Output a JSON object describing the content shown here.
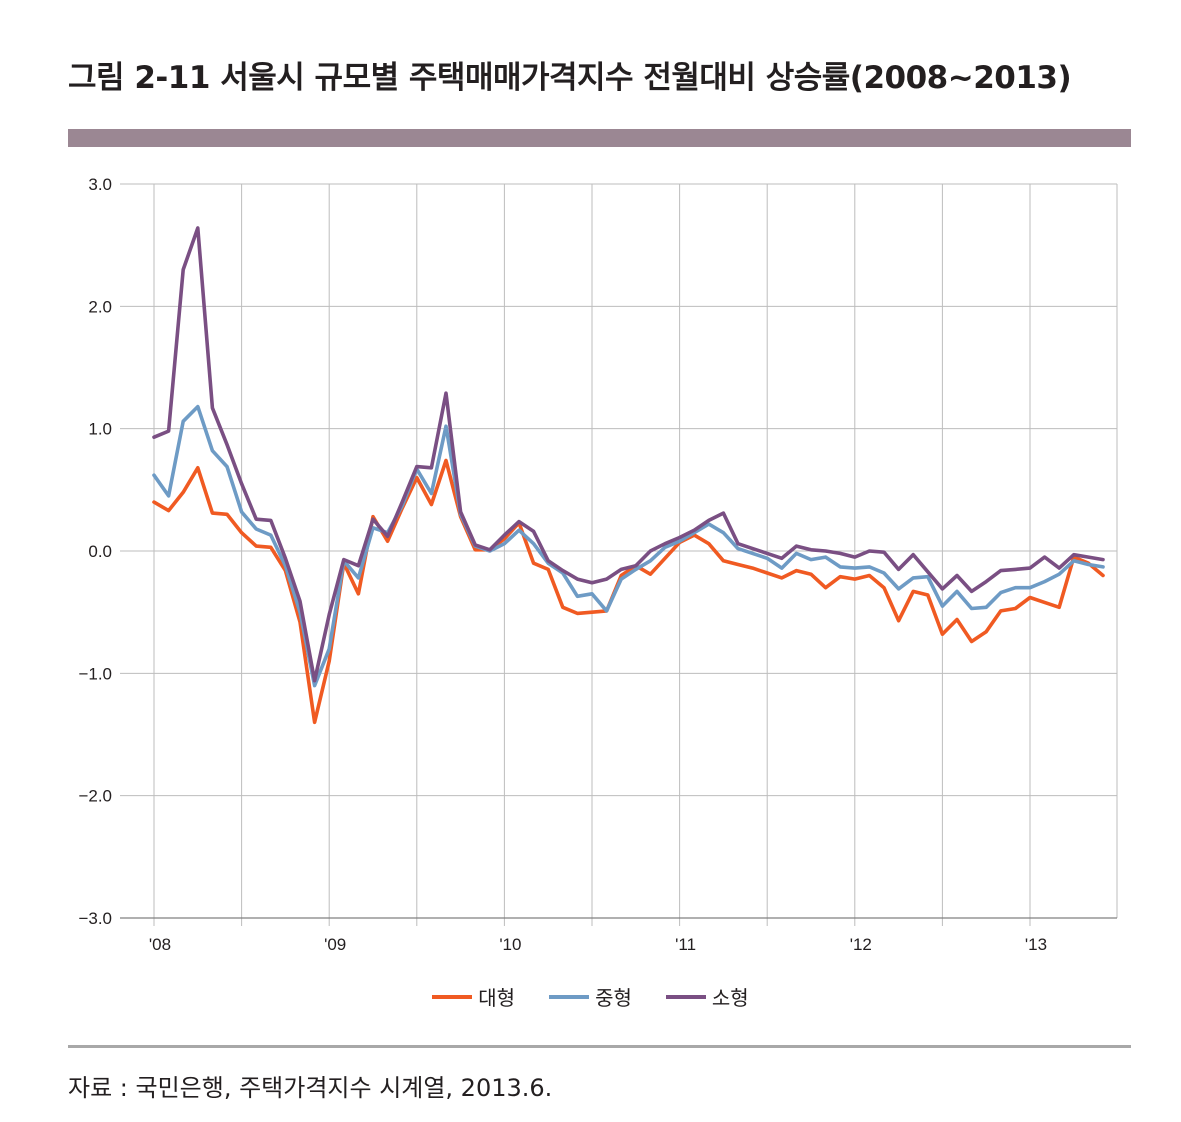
{
  "title": "그림 2-11 서울시 규모별 주택매매가격지수 전월대비 상승률(2008~2013)",
  "source": "자료 : 국민은행, 주택가격지수 시계열, 2013.6.",
  "colors": {
    "title_bar": "#9b8793",
    "grid": "#bdbdbd",
    "axis": "#808080"
  },
  "chart_data": {
    "type": "line",
    "title": "",
    "xlabel": "",
    "ylabel": "",
    "ylim": [
      -3.0,
      3.0
    ],
    "y_ticks": [
      "3.0",
      "2.0",
      "1.0",
      "0.0",
      "-1.0",
      "-2.0",
      "-3.0"
    ],
    "x_tick_labels": [
      "'08",
      "'09",
      "'10",
      "'11",
      "'12",
      "'13"
    ],
    "x_start": "2008-01",
    "x_end": "2013-06",
    "grid": true,
    "legend_position": "bottom",
    "series": [
      {
        "name": "대형",
        "color": "#f05a22",
        "values": [
          0.4,
          0.33,
          0.48,
          0.68,
          0.31,
          0.3,
          0.15,
          0.04,
          0.03,
          -0.16,
          -0.58,
          -1.4,
          -0.9,
          -0.1,
          -0.35,
          0.28,
          0.08,
          0.35,
          0.6,
          0.38,
          0.74,
          0.28,
          0.01,
          0.01,
          0.1,
          0.23,
          -0.1,
          -0.15,
          -0.46,
          -0.51,
          -0.5,
          -0.49,
          -0.2,
          -0.12,
          -0.19,
          -0.06,
          0.07,
          0.13,
          0.06,
          -0.08,
          -0.11,
          -0.14,
          -0.18,
          -0.22,
          -0.16,
          -0.19,
          -0.3,
          -0.21,
          -0.23,
          -0.2,
          -0.3,
          -0.57,
          -0.33,
          -0.36,
          -0.68,
          -0.56,
          -0.74,
          -0.66,
          -0.49,
          -0.47,
          -0.38,
          -0.42,
          -0.46,
          -0.05,
          -0.1,
          -0.2
        ]
      },
      {
        "name": "중형",
        "color": "#6e9bc5",
        "values": [
          0.62,
          0.45,
          1.06,
          1.18,
          0.82,
          0.69,
          0.32,
          0.18,
          0.13,
          -0.12,
          -0.5,
          -1.1,
          -0.8,
          -0.08,
          -0.22,
          0.19,
          0.15,
          0.37,
          0.67,
          0.47,
          1.02,
          0.3,
          0.04,
          0.0,
          0.06,
          0.17,
          0.06,
          -0.1,
          -0.18,
          -0.37,
          -0.35,
          -0.49,
          -0.23,
          -0.15,
          -0.08,
          0.03,
          0.08,
          0.15,
          0.22,
          0.15,
          0.02,
          -0.02,
          -0.06,
          -0.14,
          -0.02,
          -0.07,
          -0.05,
          -0.13,
          -0.14,
          -0.13,
          -0.18,
          -0.31,
          -0.22,
          -0.21,
          -0.45,
          -0.33,
          -0.47,
          -0.46,
          -0.34,
          -0.3,
          -0.3,
          -0.25,
          -0.19,
          -0.08,
          -0.11,
          -0.13
        ]
      },
      {
        "name": "소형",
        "color": "#7a4f83",
        "values": [
          0.93,
          0.98,
          2.3,
          2.64,
          1.17,
          0.87,
          0.55,
          0.26,
          0.25,
          -0.06,
          -0.41,
          -1.06,
          -0.52,
          -0.07,
          -0.12,
          0.26,
          0.12,
          0.4,
          0.69,
          0.68,
          1.29,
          0.32,
          0.05,
          0.01,
          0.13,
          0.24,
          0.16,
          -0.08,
          -0.16,
          -0.23,
          -0.26,
          -0.23,
          -0.15,
          -0.12,
          0.0,
          0.06,
          0.11,
          0.17,
          0.25,
          0.31,
          0.06,
          0.02,
          -0.02,
          -0.06,
          0.04,
          0.01,
          0.0,
          -0.02,
          -0.05,
          0.0,
          -0.01,
          -0.15,
          -0.03,
          -0.17,
          -0.31,
          -0.2,
          -0.33,
          -0.25,
          -0.16,
          -0.15,
          -0.14,
          -0.05,
          -0.14,
          -0.03,
          -0.05,
          -0.07
        ]
      }
    ]
  }
}
